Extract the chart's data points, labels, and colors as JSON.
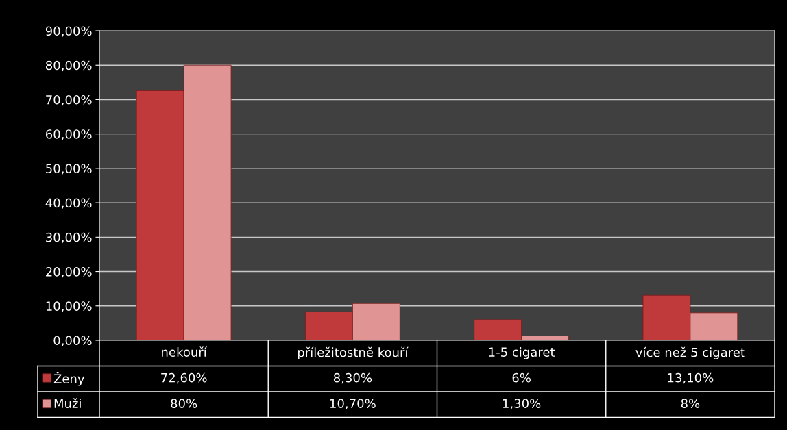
{
  "chart_data": {
    "type": "bar",
    "categories": [
      "nekouří",
      "příležitostně kouří",
      "1-5 cigaret",
      "více než 5 cigaret"
    ],
    "series": [
      {
        "name": "Ženy",
        "color": "#c0393b",
        "values": [
          72.6,
          8.3,
          6,
          13.1
        ],
        "value_labels": [
          "72,60%",
          "8,30%",
          "6%",
          "13,10%"
        ]
      },
      {
        "name": "Muži",
        "color": "#e09494",
        "values": [
          80,
          10.7,
          1.3,
          8
        ],
        "value_labels": [
          "80%",
          "10,70%",
          "1,30%",
          "8%"
        ]
      }
    ],
    "ylim": [
      0,
      90
    ],
    "yticks": [
      {
        "value": 0,
        "label": "0,00%"
      },
      {
        "value": 10,
        "label": "10,00%"
      },
      {
        "value": 20,
        "label": "20,00%"
      },
      {
        "value": 30,
        "label": "30,00%"
      },
      {
        "value": 40,
        "label": "40,00%"
      },
      {
        "value": 50,
        "label": "50,00%"
      },
      {
        "value": 60,
        "label": "60,00%"
      },
      {
        "value": 70,
        "label": "70,00%"
      },
      {
        "value": 80,
        "label": "80,00%"
      },
      {
        "value": 90,
        "label": "90,00%"
      }
    ],
    "grid": "y",
    "legend": "bottom"
  }
}
